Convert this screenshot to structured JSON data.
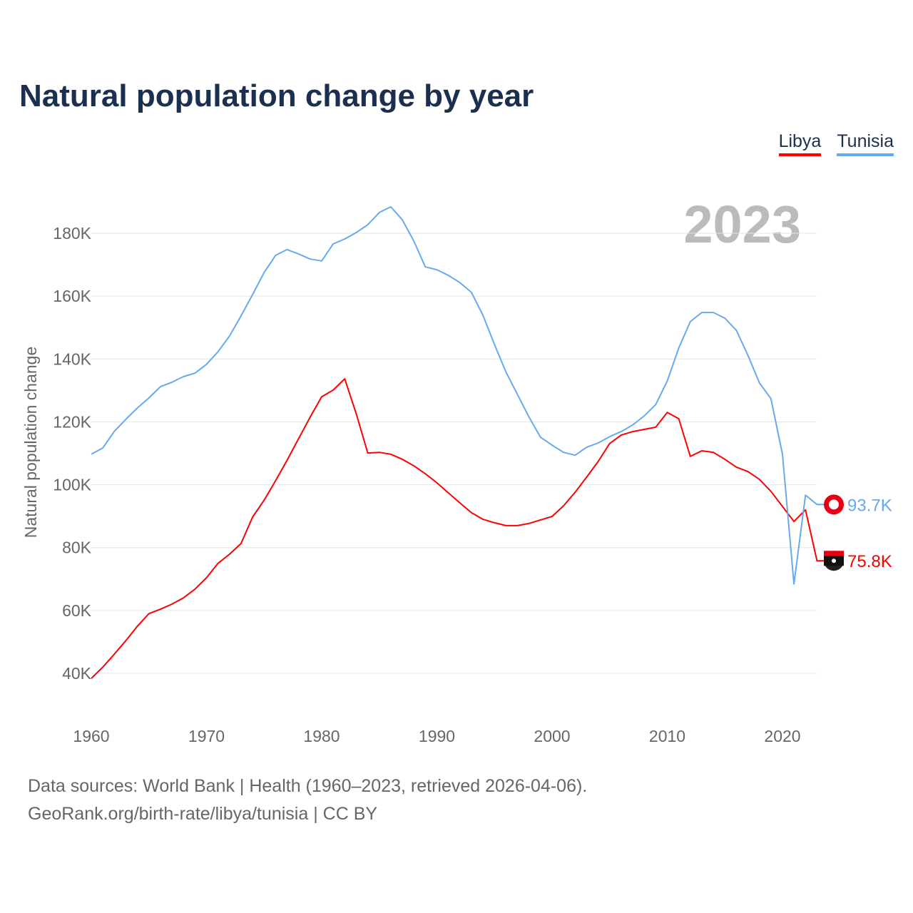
{
  "title": "Natural population change by year",
  "footer": {
    "line1": "Data sources: World Bank | Health (1960–2023, retrieved 2026-04-06).",
    "line2": "GeoRank.org/birth-rate/libya/tunisia | CC BY"
  },
  "chart_data": {
    "type": "line",
    "title": "Natural population change by year",
    "ylabel": "Natural population change",
    "xlabel": "",
    "year_label": "2023",
    "ylim": [
      30,
      195
    ],
    "xlim": [
      1960,
      2023
    ],
    "yticks": [
      40,
      60,
      80,
      100,
      120,
      140,
      160,
      180
    ],
    "ytick_labels": [
      "40K",
      "60K",
      "80K",
      "100K",
      "120K",
      "140K",
      "160K",
      "180K"
    ],
    "xticks": [
      1960,
      1970,
      1980,
      1990,
      2000,
      2010,
      2020
    ],
    "xtick_labels": [
      "1960",
      "1970",
      "1980",
      "1990",
      "2000",
      "2010",
      "2020"
    ],
    "grid": true,
    "legend_position": "top-right",
    "x_start": 1960,
    "series": [
      {
        "name": "Libya",
        "color": "#ff0000",
        "end_label": "75.8K",
        "flag_icon": "libya-flag-icon",
        "values": [
          38.4,
          42,
          46.1,
          50.4,
          55,
          59,
          60.4,
          62,
          64,
          66.8,
          70.4,
          75,
          77.9,
          81.3,
          89.7,
          95.1,
          101.3,
          107.8,
          114.7,
          121.5,
          128,
          130.1,
          133.7,
          122.6,
          110.1,
          110.3,
          109.7,
          108.1,
          106,
          103.5,
          100.6,
          97.4,
          94.2,
          91.1,
          89,
          87.9,
          87,
          87,
          87.7,
          88.8,
          89.9,
          93.3,
          97.6,
          102.4,
          107.4,
          113.1,
          115.8,
          116.9,
          117.6,
          118.3,
          123,
          121,
          109,
          110.8,
          110.3,
          108.1,
          105.6,
          104.2,
          101.7,
          97.9,
          93.1,
          88.3,
          92,
          75.8
        ]
      },
      {
        "name": "Tunisia",
        "color": "#66aaee",
        "end_label": "93.7K",
        "flag_icon": "tunisia-flag-icon",
        "values": [
          109.7,
          111.7,
          117,
          120.8,
          124.4,
          127.6,
          131.2,
          132.6,
          134.4,
          135.5,
          138.3,
          142.3,
          147.3,
          153.7,
          160.5,
          167.5,
          173,
          174.8,
          173.4,
          171.8,
          171.2,
          176.6,
          178.2,
          180.2,
          182.7,
          186.6,
          188.4,
          184.3,
          177.5,
          169.3,
          168.4,
          166.6,
          164.3,
          161.2,
          153.9,
          144.6,
          135.8,
          128.7,
          121.5,
          115.1,
          112.6,
          110.3,
          109.4,
          111.9,
          113.3,
          115.3,
          116.9,
          119,
          121.9,
          125.5,
          133,
          143.5,
          151.9,
          154.8,
          154.8,
          153,
          149.1,
          141.2,
          132.4,
          127.4,
          109.7,
          68.4,
          96.7,
          93.7
        ]
      }
    ]
  }
}
